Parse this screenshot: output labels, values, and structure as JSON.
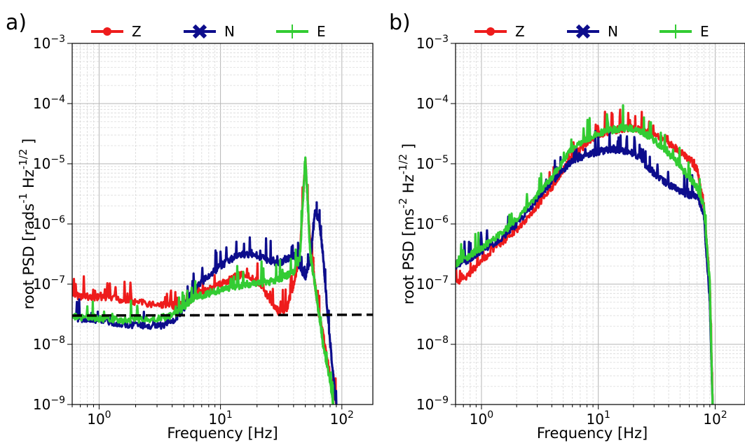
{
  "chart_data": [
    {
      "type": "line",
      "panel_label": "a)",
      "xscale": "log",
      "yscale": "log",
      "xlim": [
        0.6,
        180
      ],
      "ylim": [
        1e-09,
        0.001
      ],
      "xlabel": "Frequency [Hz]",
      "ylabel_parts": [
        "root PSD [rads",
        "-1",
        " Hz",
        "-1/2",
        " ]"
      ],
      "xticks": [
        {
          "value": 1,
          "base": "10",
          "exp": "0"
        },
        {
          "value": 10,
          "base": "10",
          "exp": "1"
        },
        {
          "value": 100,
          "base": "10",
          "exp": "2"
        }
      ],
      "yticks": [
        {
          "value": 1e-09,
          "base": "10",
          "exp": "−9"
        },
        {
          "value": 1e-08,
          "base": "10",
          "exp": "−8"
        },
        {
          "value": 1e-07,
          "base": "10",
          "exp": "−7"
        },
        {
          "value": 1e-06,
          "base": "10",
          "exp": "−6"
        },
        {
          "value": 1e-05,
          "base": "10",
          "exp": "−5"
        },
        {
          "value": 0.0001,
          "base": "10",
          "exp": "−4"
        },
        {
          "value": 0.001,
          "base": "10",
          "exp": "−3"
        }
      ],
      "grid": true,
      "legend_position": "top",
      "reference_line": {
        "style": "dashed",
        "color": "#000000",
        "x": [
          0.6,
          180
        ],
        "y": [
          3e-08,
          3.1e-08
        ]
      },
      "series": [
        {
          "name": "Z",
          "color": "#ee1c1c",
          "marker": "circle",
          "points": [
            [
              0.6,
              6.5e-08
            ],
            [
              0.8,
              6.2e-08
            ],
            [
              1,
              6e-08
            ],
            [
              1.5,
              5.5e-08
            ],
            [
              2,
              5e-08
            ],
            [
              3,
              4.6e-08
            ],
            [
              4,
              4.4e-08
            ],
            [
              5,
              4.6e-08
            ],
            [
              6,
              6e-08
            ],
            [
              8,
              8e-08
            ],
            [
              10,
              1e-07
            ],
            [
              13,
              1.3e-07
            ],
            [
              16,
              1.5e-07
            ],
            [
              20,
              1.1e-07
            ],
            [
              25,
              6e-08
            ],
            [
              30,
              3.5e-08
            ],
            [
              35,
              3.8e-08
            ],
            [
              40,
              1e-07
            ],
            [
              45,
              3e-07
            ],
            [
              50,
              1.2e-05
            ],
            [
              55,
              4e-07
            ],
            [
              60,
              1e-07
            ],
            [
              65,
              3e-08
            ],
            [
              70,
              1.5e-08
            ],
            [
              80,
              3e-09
            ],
            [
              90,
              1e-09
            ]
          ]
        },
        {
          "name": "N",
          "color": "#0d0d8c",
          "marker": "x",
          "points": [
            [
              0.6,
              2.8e-08
            ],
            [
              0.8,
              2.6e-08
            ],
            [
              1,
              2.5e-08
            ],
            [
              1.5,
              2.2e-08
            ],
            [
              2,
              2.1e-08
            ],
            [
              3,
              2e-08
            ],
            [
              4,
              2.3e-08
            ],
            [
              5,
              4e-08
            ],
            [
              6,
              8e-08
            ],
            [
              8,
              1.4e-07
            ],
            [
              10,
              2e-07
            ],
            [
              13,
              2.8e-07
            ],
            [
              16,
              3.2e-07
            ],
            [
              20,
              3e-07
            ],
            [
              25,
              2.5e-07
            ],
            [
              30,
              2.2e-07
            ],
            [
              35,
              2.6e-07
            ],
            [
              40,
              3e-07
            ],
            [
              45,
              2e-07
            ],
            [
              50,
              1.3e-07
            ],
            [
              55,
              2.5e-07
            ],
            [
              60,
              1.5e-06
            ],
            [
              65,
              1.2e-06
            ],
            [
              70,
              3e-07
            ],
            [
              80,
              1e-08
            ],
            [
              90,
              1e-09
            ]
          ]
        },
        {
          "name": "E",
          "color": "#33cc33",
          "marker": "plus",
          "points": [
            [
              0.6,
              2.9e-08
            ],
            [
              0.8,
              2.8e-08
            ],
            [
              1,
              2.7e-08
            ],
            [
              1.5,
              2.5e-08
            ],
            [
              2,
              2.5e-08
            ],
            [
              3,
              2.7e-08
            ],
            [
              4,
              3e-08
            ],
            [
              5,
              4.2e-08
            ],
            [
              6,
              6e-08
            ],
            [
              8,
              7e-08
            ],
            [
              10,
              8e-08
            ],
            [
              13,
              9e-08
            ],
            [
              16,
              1e-07
            ],
            [
              20,
              1e-07
            ],
            [
              25,
              1.1e-07
            ],
            [
              30,
              1.2e-07
            ],
            [
              35,
              1.4e-07
            ],
            [
              40,
              1.6e-07
            ],
            [
              45,
              2.5e-07
            ],
            [
              50,
              1.3e-05
            ],
            [
              55,
              3e-07
            ],
            [
              60,
              1e-07
            ],
            [
              65,
              3e-08
            ],
            [
              70,
              1e-08
            ],
            [
              80,
              2.5e-09
            ],
            [
              85,
              1e-09
            ]
          ]
        }
      ]
    },
    {
      "type": "line",
      "panel_label": "b)",
      "xscale": "log",
      "yscale": "log",
      "xlim": [
        0.6,
        180
      ],
      "ylim": [
        1e-09,
        0.001
      ],
      "xlabel": "Frequency [Hz]",
      "ylabel_parts": [
        "root PSD [ms",
        "-2",
        " Hz",
        "-1/2",
        " ]"
      ],
      "xticks": [
        {
          "value": 1,
          "base": "10",
          "exp": "0"
        },
        {
          "value": 10,
          "base": "10",
          "exp": "1"
        },
        {
          "value": 100,
          "base": "10",
          "exp": "2"
        }
      ],
      "yticks": [
        {
          "value": 1e-09,
          "base": "10",
          "exp": "−9"
        },
        {
          "value": 1e-08,
          "base": "10",
          "exp": "−8"
        },
        {
          "value": 1e-07,
          "base": "10",
          "exp": "−7"
        },
        {
          "value": 1e-06,
          "base": "10",
          "exp": "−6"
        },
        {
          "value": 1e-05,
          "base": "10",
          "exp": "−5"
        },
        {
          "value": 0.0001,
          "base": "10",
          "exp": "−4"
        },
        {
          "value": 0.001,
          "base": "10",
          "exp": "−3"
        }
      ],
      "grid": true,
      "legend_position": "top",
      "series": [
        {
          "name": "Z",
          "color": "#ee1c1c",
          "marker": "circle",
          "points": [
            [
              0.6,
              1e-07
            ],
            [
              0.8,
              1.5e-07
            ],
            [
              1,
              2.5e-07
            ],
            [
              1.5,
              5e-07
            ],
            [
              2,
              8e-07
            ],
            [
              3,
              2e-06
            ],
            [
              4,
              4e-06
            ],
            [
              5,
              8e-06
            ],
            [
              6,
              1.3e-05
            ],
            [
              8,
              2.2e-05
            ],
            [
              10,
              3e-05
            ],
            [
              13,
              3.5e-05
            ],
            [
              16,
              3.8e-05
            ],
            [
              20,
              4e-05
            ],
            [
              25,
              3.5e-05
            ],
            [
              30,
              3e-05
            ],
            [
              40,
              2.2e-05
            ],
            [
              50,
              1.6e-05
            ],
            [
              60,
              1.2e-05
            ],
            [
              70,
              8e-06
            ],
            [
              80,
              2e-06
            ],
            [
              90,
              1e-07
            ],
            [
              95,
              1e-09
            ]
          ]
        },
        {
          "name": "N",
          "color": "#0d0d8c",
          "marker": "x",
          "points": [
            [
              0.6,
              2e-07
            ],
            [
              0.8,
              2.6e-07
            ],
            [
              1,
              3.5e-07
            ],
            [
              1.5,
              6e-07
            ],
            [
              2,
              1e-06
            ],
            [
              3,
              2.5e-06
            ],
            [
              4,
              5e-06
            ],
            [
              5,
              8e-06
            ],
            [
              6,
              1.1e-05
            ],
            [
              8,
              1.4e-05
            ],
            [
              10,
              1.6e-05
            ],
            [
              13,
              1.7e-05
            ],
            [
              16,
              1.7e-05
            ],
            [
              20,
              1.5e-05
            ],
            [
              25,
              1e-05
            ],
            [
              30,
              7e-06
            ],
            [
              40,
              4.5e-06
            ],
            [
              50,
              3.5e-06
            ],
            [
              60,
              3e-06
            ],
            [
              70,
              3e-06
            ],
            [
              80,
              1.5e-06
            ],
            [
              90,
              5e-08
            ],
            [
              95,
              1e-09
            ]
          ]
        },
        {
          "name": "E",
          "color": "#33cc33",
          "marker": "plus",
          "points": [
            [
              0.6,
              2.2e-07
            ],
            [
              0.8,
              3e-07
            ],
            [
              1,
              4e-07
            ],
            [
              1.5,
              7e-07
            ],
            [
              2,
              1.2e-06
            ],
            [
              3,
              3e-06
            ],
            [
              4,
              6e-06
            ],
            [
              5,
              1.1e-05
            ],
            [
              6,
              1.8e-05
            ],
            [
              8,
              2.6e-05
            ],
            [
              10,
              3.2e-05
            ],
            [
              13,
              3.6e-05
            ],
            [
              16,
              4e-05
            ],
            [
              20,
              3.8e-05
            ],
            [
              25,
              3.2e-05
            ],
            [
              30,
              2.5e-05
            ],
            [
              40,
              1.5e-05
            ],
            [
              50,
              9e-06
            ],
            [
              60,
              6e-06
            ],
            [
              70,
              4e-06
            ],
            [
              80,
              2e-06
            ],
            [
              90,
              1e-07
            ],
            [
              95,
              1e-09
            ]
          ]
        }
      ]
    }
  ]
}
